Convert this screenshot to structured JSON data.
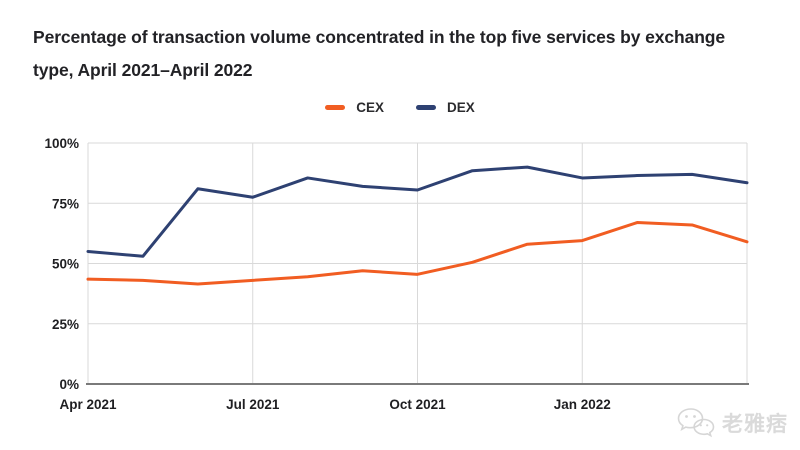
{
  "title": "Percentage of transaction volume concentrated in the top five services by exchange type, April 2021–April 2022",
  "watermark": {
    "text": "老雅痞",
    "icon": "wechat-icon",
    "color": "#dadada"
  },
  "colors": {
    "cex_orange": "#F15D22",
    "dex_navy": "#2E4172",
    "gridline": "#D9D9D9",
    "axis_line": "#7a7a7a",
    "tick_text": "#1f1f22"
  },
  "chart_data": {
    "type": "line",
    "title": "Percentage of transaction volume concentrated in the top five services by exchange type, April 2021–April 2022",
    "x": [
      "Apr 2021",
      "May 2021",
      "Jun 2021",
      "Jul 2021",
      "Aug 2021",
      "Sep 2021",
      "Oct 2021",
      "Nov 2021",
      "Dec 2021",
      "Jan 2022",
      "Feb 2022",
      "Mar 2022",
      "Apr 2022"
    ],
    "series": [
      {
        "name": "CEX",
        "color": "#F15D22",
        "values": [
          43.5,
          43,
          41.5,
          43,
          44.5,
          47,
          45.5,
          50.5,
          58,
          59.5,
          67,
          66,
          59
        ]
      },
      {
        "name": "DEX",
        "color": "#2E4172",
        "values": [
          55,
          53,
          81,
          77.5,
          85.5,
          82,
          80.5,
          88.5,
          90,
          85.5,
          86.5,
          87,
          83.5
        ]
      }
    ],
    "ylim": [
      0,
      100
    ],
    "yticks": [
      {
        "value": 0,
        "label": "0%"
      },
      {
        "value": 25,
        "label": "25%"
      },
      {
        "value": 50,
        "label": "50%"
      },
      {
        "value": 75,
        "label": "75%"
      },
      {
        "value": 100,
        "label": "100%"
      }
    ],
    "xticks": [
      {
        "index": 0,
        "label": "Apr 2021"
      },
      {
        "index": 3,
        "label": "Jul 2021"
      },
      {
        "index": 6,
        "label": "Oct 2021"
      },
      {
        "index": 9,
        "label": "Jan 2022"
      }
    ],
    "grid": true,
    "legend_position": "top-center"
  }
}
